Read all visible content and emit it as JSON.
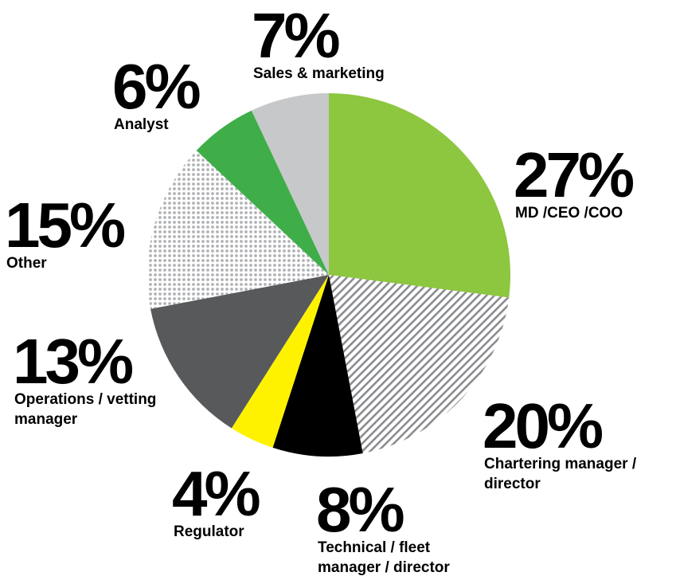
{
  "chart_data": {
    "type": "pie",
    "categories": [
      "MD /CEO /COO",
      "Chartering manager / director",
      "Technical / fleet manager / director",
      "Regulator",
      "Operations / vetting manager",
      "Other",
      "Analyst",
      "Sales & marketing"
    ],
    "values": [
      27,
      20,
      8,
      4,
      13,
      15,
      6,
      7
    ],
    "value_labels": [
      "27%",
      "20%",
      "8%",
      "4%",
      "13%",
      "15%",
      "6%",
      "7%"
    ],
    "colors": [
      "#8dc63f",
      "#a7a9ac",
      "#000000",
      "#fff200",
      "#58595b",
      "#bcbec0",
      "#3fae49",
      "#c7c8ca"
    ],
    "patterns": [
      null,
      "hatch",
      null,
      null,
      null,
      "dots",
      null,
      null
    ]
  }
}
